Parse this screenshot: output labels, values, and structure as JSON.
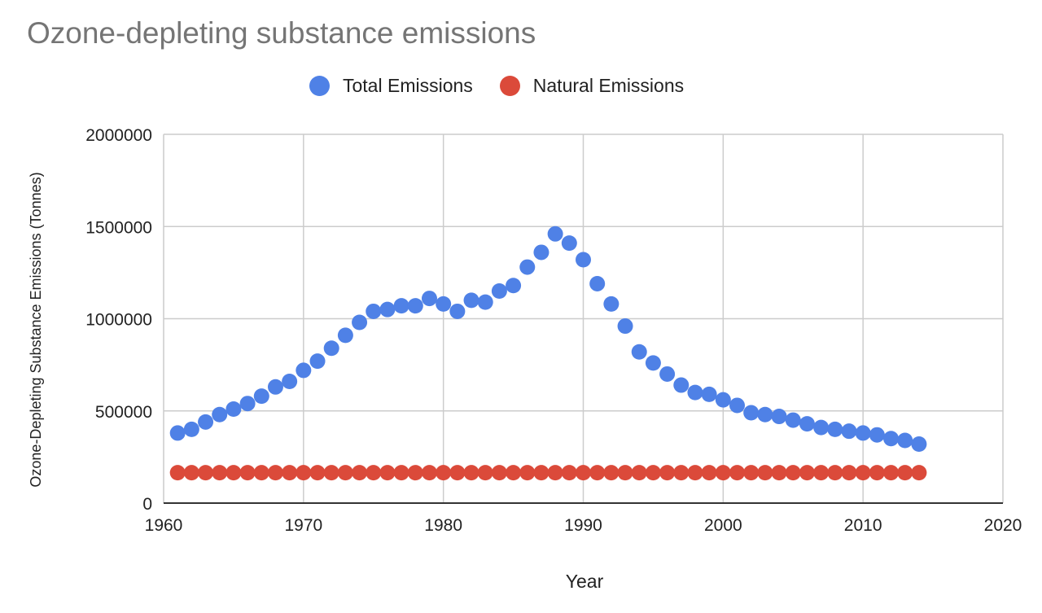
{
  "title": "Ozone-depleting substance emissions",
  "chart_data": {
    "type": "scatter",
    "title": "Ozone-depleting substance emissions",
    "xlabel": "Year",
    "ylabel": "Ozone-Depleting Substance Emissions (Tonnes)",
    "xlim": [
      1960,
      2020
    ],
    "ylim": [
      0,
      2000000
    ],
    "x_ticks": [
      "1960",
      "1970",
      "1980",
      "1990",
      "2000",
      "2010",
      "2020"
    ],
    "y_ticks": [
      "0",
      "500000",
      "1000000",
      "1500000",
      "2000000"
    ],
    "grid": true,
    "legend_position": "top",
    "series": [
      {
        "name": "Total Emissions",
        "color": "#4f81e6",
        "x": [
          1961,
          1962,
          1963,
          1964,
          1965,
          1966,
          1967,
          1968,
          1969,
          1970,
          1971,
          1972,
          1973,
          1974,
          1975,
          1976,
          1977,
          1978,
          1979,
          1980,
          1981,
          1982,
          1983,
          1984,
          1985,
          1986,
          1987,
          1988,
          1989,
          1990,
          1991,
          1992,
          1993,
          1994,
          1995,
          1996,
          1997,
          1998,
          1999,
          2000,
          2001,
          2002,
          2003,
          2004,
          2005,
          2006,
          2007,
          2008,
          2009,
          2010,
          2011,
          2012,
          2013,
          2014
        ],
        "y": [
          380000,
          400000,
          440000,
          480000,
          510000,
          540000,
          580000,
          630000,
          660000,
          720000,
          770000,
          840000,
          910000,
          980000,
          1040000,
          1050000,
          1070000,
          1070000,
          1110000,
          1080000,
          1040000,
          1100000,
          1090000,
          1150000,
          1180000,
          1280000,
          1360000,
          1460000,
          1410000,
          1320000,
          1190000,
          1080000,
          960000,
          820000,
          760000,
          700000,
          640000,
          600000,
          590000,
          560000,
          530000,
          490000,
          480000,
          470000,
          450000,
          430000,
          410000,
          400000,
          390000,
          380000,
          370000,
          350000,
          340000,
          320000
        ]
      },
      {
        "name": "Natural Emissions",
        "color": "#db4a3a",
        "x": [
          1961,
          1962,
          1963,
          1964,
          1965,
          1966,
          1967,
          1968,
          1969,
          1970,
          1971,
          1972,
          1973,
          1974,
          1975,
          1976,
          1977,
          1978,
          1979,
          1980,
          1981,
          1982,
          1983,
          1984,
          1985,
          1986,
          1987,
          1988,
          1989,
          1990,
          1991,
          1992,
          1993,
          1994,
          1995,
          1996,
          1997,
          1998,
          1999,
          2000,
          2001,
          2002,
          2003,
          2004,
          2005,
          2006,
          2007,
          2008,
          2009,
          2010,
          2011,
          2012,
          2013,
          2014
        ],
        "y": [
          165000,
          165000,
          165000,
          165000,
          165000,
          165000,
          165000,
          165000,
          165000,
          165000,
          165000,
          165000,
          165000,
          165000,
          165000,
          165000,
          165000,
          165000,
          165000,
          165000,
          165000,
          165000,
          165000,
          165000,
          165000,
          165000,
          165000,
          165000,
          165000,
          165000,
          165000,
          165000,
          165000,
          165000,
          165000,
          165000,
          165000,
          165000,
          165000,
          165000,
          165000,
          165000,
          165000,
          165000,
          165000,
          165000,
          165000,
          165000,
          165000,
          165000,
          165000,
          165000,
          165000,
          165000
        ]
      }
    ]
  }
}
